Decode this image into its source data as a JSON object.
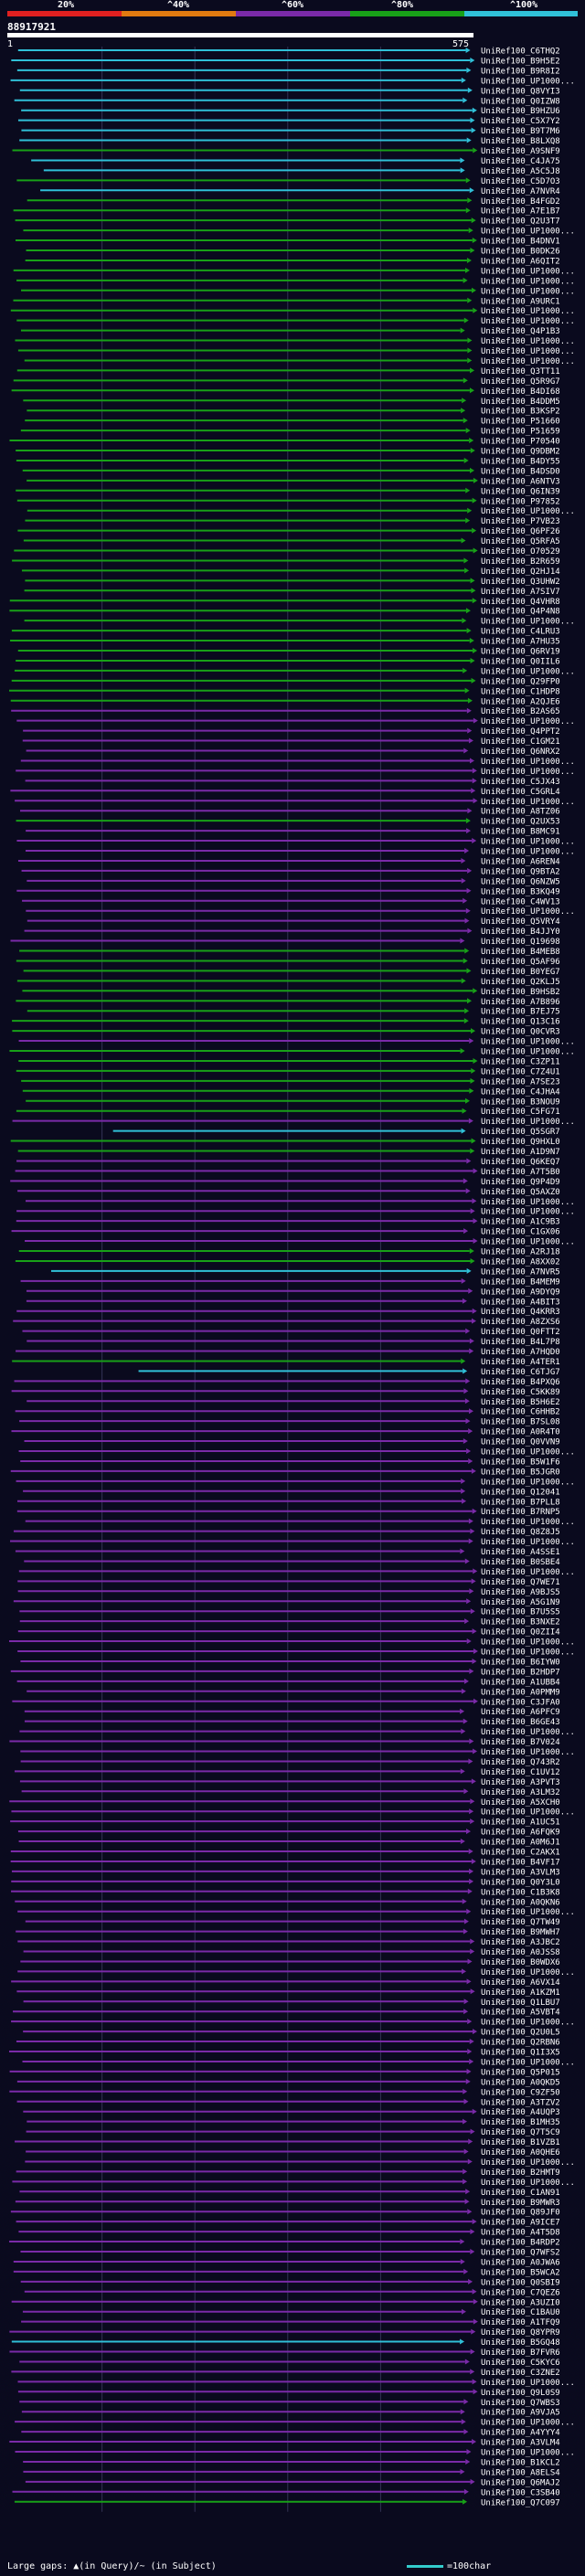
{
  "legend": {
    "labels": [
      "20%",
      "^40%",
      "^60%",
      "^80%",
      "^100%"
    ],
    "colors": [
      "#e02020",
      "#e07a10",
      "#7a2aa8",
      "#18a018",
      "#30c0d8"
    ]
  },
  "query": {
    "id": "88917921",
    "start": "1",
    "end": "575"
  },
  "hits": [
    {
      "name": "UniRef100_C6THQ2",
      "color": "#30c0d8"
    },
    {
      "name": "UniRef100_B9H5E2",
      "color": "#30c0d8"
    },
    {
      "name": "UniRef100_B9R8I2",
      "color": "#30c0d8"
    },
    {
      "name": "UniRef100_UP1000...",
      "color": "#30c0d8"
    },
    {
      "name": "UniRef100_Q8VYI3",
      "color": "#30c0d8"
    },
    {
      "name": "UniRef100_Q0IZW8",
      "color": "#30c0d8"
    },
    {
      "name": "UniRef100_B9HZU6",
      "color": "#30c0d8"
    },
    {
      "name": "UniRef100_C5X7Y2",
      "color": "#30c0d8"
    },
    {
      "name": "UniRef100_B9T7M6",
      "color": "#30c0d8"
    },
    {
      "name": "UniRef100_B8LXQ8",
      "color": "#30c0d8"
    },
    {
      "name": "UniRef100_A9SNF9",
      "color": "#18a018"
    },
    {
      "name": "UniRef100_C4JA75",
      "color": "#30c0d8"
    },
    {
      "name": "UniRef100_A5C5J8",
      "color": "#30c0d8"
    },
    {
      "name": "UniRef100_C5D7O3",
      "color": "#18a018"
    },
    {
      "name": "UniRef100_A7NVR4",
      "color": "#30c0d8"
    },
    {
      "name": "UniRef100_B4FGD2",
      "color": "#18a018"
    },
    {
      "name": "UniRef100_A7E1B7",
      "color": "#18a018"
    },
    {
      "name": "UniRef100_Q2U3T7",
      "color": "#18a018"
    },
    {
      "name": "UniRef100_UP1000...",
      "color": "#18a018"
    },
    {
      "name": "UniRef100_B4DNV1",
      "color": "#18a018"
    },
    {
      "name": "UniRef100_B0DK26",
      "color": "#18a018"
    },
    {
      "name": "UniRef100_A6QIT2",
      "color": "#18a018"
    },
    {
      "name": "UniRef100_UP1000...",
      "color": "#18a018"
    },
    {
      "name": "UniRef100_UP1000...",
      "color": "#18a018"
    },
    {
      "name": "UniRef100_UP1000...",
      "color": "#18a018"
    },
    {
      "name": "UniRef100_A9URC1",
      "color": "#18a018"
    },
    {
      "name": "UniRef100_UP1000...",
      "color": "#18a018"
    },
    {
      "name": "UniRef100_UP1000...",
      "color": "#18a018"
    },
    {
      "name": "UniRef100_Q4P1B3",
      "color": "#18a018"
    },
    {
      "name": "UniRef100_UP1000...",
      "color": "#18a018"
    },
    {
      "name": "UniRef100_UP1000...",
      "color": "#18a018"
    },
    {
      "name": "UniRef100_UP1000...",
      "color": "#18a018"
    },
    {
      "name": "UniRef100_Q3TT11",
      "color": "#18a018"
    },
    {
      "name": "UniRef100_Q5R9G7",
      "color": "#18a018"
    },
    {
      "name": "UniRef100_B4DI68",
      "color": "#18a018"
    },
    {
      "name": "UniRef100_B4DDM5",
      "color": "#18a018"
    },
    {
      "name": "UniRef100_B3KSP2",
      "color": "#18a018"
    },
    {
      "name": "UniRef100_P51660",
      "color": "#18a018"
    },
    {
      "name": "UniRef100_P51659",
      "color": "#18a018"
    },
    {
      "name": "UniRef100_P70540",
      "color": "#18a018"
    },
    {
      "name": "UniRef100_Q9DBM2",
      "color": "#18a018"
    },
    {
      "name": "UniRef100_B4DY55",
      "color": "#18a018"
    },
    {
      "name": "UniRef100_B4DSD0",
      "color": "#18a018"
    },
    {
      "name": "UniRef100_A6NTV3",
      "color": "#18a018"
    },
    {
      "name": "UniRef100_Q6IN39",
      "color": "#18a018"
    },
    {
      "name": "UniRef100_P97852",
      "color": "#18a018"
    },
    {
      "name": "UniRef100_UP1000...",
      "color": "#18a018"
    },
    {
      "name": "UniRef100_P7VB23",
      "color": "#18a018"
    },
    {
      "name": "UniRef100_Q6PF26",
      "color": "#18a018"
    },
    {
      "name": "UniRef100_Q5RFA5",
      "color": "#18a018"
    },
    {
      "name": "UniRef100_O70529",
      "color": "#18a018"
    },
    {
      "name": "UniRef100_B2R659",
      "color": "#18a018"
    },
    {
      "name": "UniRef100_Q2HJ14",
      "color": "#18a018"
    },
    {
      "name": "UniRef100_Q3UHW2",
      "color": "#18a018"
    },
    {
      "name": "UniRef100_A7SIV7",
      "color": "#18a018"
    },
    {
      "name": "UniRef100_Q4VHR8",
      "color": "#18a018"
    },
    {
      "name": "UniRef100_Q4P4N8",
      "color": "#18a018"
    },
    {
      "name": "UniRef100_UP1000...",
      "color": "#18a018"
    },
    {
      "name": "UniRef100_C4LRU3",
      "color": "#18a018"
    },
    {
      "name": "UniRef100_A7HU35",
      "color": "#18a018"
    },
    {
      "name": "UniRef100_Q6RV19",
      "color": "#18a018"
    },
    {
      "name": "UniRef100_Q0IIL6",
      "color": "#18a018"
    },
    {
      "name": "UniRef100_UP1000...",
      "color": "#18a018"
    },
    {
      "name": "UniRef100_Q29FP0",
      "color": "#18a018"
    },
    {
      "name": "UniRef100_C1HDP8",
      "color": "#18a018"
    },
    {
      "name": "UniRef100_A2QJE6",
      "color": "#18a018"
    },
    {
      "name": "UniRef100_B2AS65",
      "color": "#7a2aa8"
    },
    {
      "name": "UniRef100_UP1000...",
      "color": "#7a2aa8"
    },
    {
      "name": "UniRef100_Q4PPT2",
      "color": "#7a2aa8"
    },
    {
      "name": "UniRef100_C1GM21",
      "color": "#7a2aa8"
    },
    {
      "name": "UniRef100_Q6NRX2",
      "color": "#7a2aa8"
    },
    {
      "name": "UniRef100_UP1000...",
      "color": "#7a2aa8"
    },
    {
      "name": "UniRef100_UP1000...",
      "color": "#7a2aa8"
    },
    {
      "name": "UniRef100_C5JX43",
      "color": "#7a2aa8"
    },
    {
      "name": "UniRef100_C5GRL4",
      "color": "#7a2aa8"
    },
    {
      "name": "UniRef100_UP1000...",
      "color": "#7a2aa8"
    },
    {
      "name": "UniRef100_A8TZ06",
      "color": "#7a2aa8"
    },
    {
      "name": "UniRef100_Q2UX53",
      "color": "#18a018"
    },
    {
      "name": "UniRef100_B8MC91",
      "color": "#7a2aa8"
    },
    {
      "name": "UniRef100_UP1000...",
      "color": "#7a2aa8"
    },
    {
      "name": "UniRef100_UP1000...",
      "color": "#7a2aa8"
    },
    {
      "name": "UniRef100_A6REN4",
      "color": "#7a2aa8"
    },
    {
      "name": "UniRef100_Q9BTA2",
      "color": "#7a2aa8"
    },
    {
      "name": "UniRef100_Q6NZW5",
      "color": "#7a2aa8"
    },
    {
      "name": "UniRef100_B3KQ49",
      "color": "#7a2aa8"
    },
    {
      "name": "UniRef100_C4WV13",
      "color": "#7a2aa8"
    },
    {
      "name": "UniRef100_UP1000...",
      "color": "#7a2aa8"
    },
    {
      "name": "UniRef100_Q5VRY4",
      "color": "#7a2aa8"
    },
    {
      "name": "UniRef100_B4JJY0",
      "color": "#7a2aa8"
    },
    {
      "name": "UniRef100_Q19698",
      "color": "#7a2aa8"
    },
    {
      "name": "UniRef100_B4MEB8",
      "color": "#18a018"
    },
    {
      "name": "UniRef100_Q5AF96",
      "color": "#18a018"
    },
    {
      "name": "UniRef100_B0YEG7",
      "color": "#18a018"
    },
    {
      "name": "UniRef100_Q2KLJ5",
      "color": "#18a018"
    },
    {
      "name": "UniRef100_B9HSB2",
      "color": "#18a018"
    },
    {
      "name": "UniRef100_A7B896",
      "color": "#18a018"
    },
    {
      "name": "UniRef100_B7EJ75",
      "color": "#18a018"
    },
    {
      "name": "UniRef100_Q13C16",
      "color": "#18a018"
    },
    {
      "name": "UniRef100_Q0CVR3",
      "color": "#18a018"
    },
    {
      "name": "UniRef100_UP1000...",
      "color": "#7a2aa8"
    },
    {
      "name": "UniRef100_UP1000...",
      "color": "#18a018"
    },
    {
      "name": "UniRef100_C3ZP11",
      "color": "#18a018"
    },
    {
      "name": "UniRef100_C7Z4U1",
      "color": "#18a018"
    },
    {
      "name": "UniRef100_A7SE23",
      "color": "#18a018"
    },
    {
      "name": "UniRef100_C4JHA4",
      "color": "#18a018"
    },
    {
      "name": "UniRef100_B3NOU9",
      "color": "#18a018"
    },
    {
      "name": "UniRef100_C5FG71",
      "color": "#18a018"
    },
    {
      "name": "UniRef100_UP1000...",
      "color": "#7a2aa8"
    },
    {
      "name": "UniRef100_Q5SGR7",
      "color": "#30c0d8"
    },
    {
      "name": "UniRef100_Q9HXL0",
      "color": "#18a018"
    },
    {
      "name": "UniRef100_A1D9N7",
      "color": "#18a018"
    },
    {
      "name": "UniRef100_Q6KEQ7",
      "color": "#7a2aa8"
    },
    {
      "name": "UniRef100_A7T5B0",
      "color": "#7a2aa8"
    },
    {
      "name": "UniRef100_Q9P4D9",
      "color": "#7a2aa8"
    },
    {
      "name": "UniRef100_Q5AXZ0",
      "color": "#7a2aa8"
    },
    {
      "name": "UniRef100_UP1000...",
      "color": "#7a2aa8"
    },
    {
      "name": "UniRef100_UP1000...",
      "color": "#7a2aa8"
    },
    {
      "name": "UniRef100_A1C9B3",
      "color": "#7a2aa8"
    },
    {
      "name": "UniRef100_C1GX06",
      "color": "#7a2aa8"
    },
    {
      "name": "UniRef100_UP1000...",
      "color": "#7a2aa8"
    },
    {
      "name": "UniRef100_A2RJ18",
      "color": "#18a018"
    },
    {
      "name": "UniRef100_A8XX02",
      "color": "#18a018"
    },
    {
      "name": "UniRef100_A7NVR5",
      "color": "#30c0d8"
    },
    {
      "name": "UniRef100_B4MEM9",
      "color": "#7a2aa8"
    },
    {
      "name": "UniRef100_A9DYQ9",
      "color": "#7a2aa8"
    },
    {
      "name": "UniRef100_A4BIT3",
      "color": "#7a2aa8"
    },
    {
      "name": "UniRef100_Q4KRR3",
      "color": "#7a2aa8"
    },
    {
      "name": "UniRef100_A8ZXS6",
      "color": "#7a2aa8"
    },
    {
      "name": "UniRef100_Q0FTT2",
      "color": "#7a2aa8"
    },
    {
      "name": "UniRef100_B4L7P8",
      "color": "#7a2aa8"
    },
    {
      "name": "UniRef100_A7HQD0",
      "color": "#7a2aa8"
    },
    {
      "name": "UniRef100_A4TER1",
      "color": "#18a018"
    },
    {
      "name": "UniRef100_C6TJG7",
      "color": "#30c0d8"
    },
    {
      "name": "UniRef100_B4PXQ6",
      "color": "#7a2aa8"
    },
    {
      "name": "UniRef100_C5KK89",
      "color": "#7a2aa8"
    },
    {
      "name": "UniRef100_B5H6E2",
      "color": "#7a2aa8"
    },
    {
      "name": "UniRef100_C6HHB2",
      "color": "#7a2aa8"
    },
    {
      "name": "UniRef100_B7SL08",
      "color": "#7a2aa8"
    },
    {
      "name": "UniRef100_A0R4T0",
      "color": "#7a2aa8"
    },
    {
      "name": "UniRef100_Q0VVN9",
      "color": "#7a2aa8"
    },
    {
      "name": "UniRef100_UP1000...",
      "color": "#7a2aa8"
    },
    {
      "name": "UniRef100_B5W1F6",
      "color": "#7a2aa8"
    },
    {
      "name": "UniRef100_B5JGR0",
      "color": "#7a2aa8"
    },
    {
      "name": "UniRef100_UP1000...",
      "color": "#7a2aa8"
    },
    {
      "name": "UniRef100_Q12041",
      "color": "#7a2aa8"
    },
    {
      "name": "UniRef100_B7PLL8",
      "color": "#7a2aa8"
    },
    {
      "name": "UniRef100_B7RNP5",
      "color": "#7a2aa8"
    },
    {
      "name": "UniRef100_UP1000...",
      "color": "#7a2aa8"
    },
    {
      "name": "UniRef100_Q8Z8J5",
      "color": "#7a2aa8"
    },
    {
      "name": "UniRef100_UP1000...",
      "color": "#7a2aa8"
    },
    {
      "name": "UniRef100_A4SSE1",
      "color": "#7a2aa8"
    },
    {
      "name": "UniRef100_B0SBE4",
      "color": "#7a2aa8"
    },
    {
      "name": "UniRef100_UP1000...",
      "color": "#7a2aa8"
    },
    {
      "name": "UniRef100_Q7WE71",
      "color": "#7a2aa8"
    },
    {
      "name": "UniRef100_A9BJS5",
      "color": "#7a2aa8"
    },
    {
      "name": "UniRef100_A5G1N9",
      "color": "#7a2aa8"
    },
    {
      "name": "UniRef100_B7U5S5",
      "color": "#7a2aa8"
    },
    {
      "name": "UniRef100_B3NXE2",
      "color": "#7a2aa8"
    },
    {
      "name": "UniRef100_Q0ZII4",
      "color": "#7a2aa8"
    },
    {
      "name": "UniRef100_UP1000...",
      "color": "#7a2aa8"
    },
    {
      "name": "UniRef100_UP1000...",
      "color": "#7a2aa8"
    },
    {
      "name": "UniRef100_B6IYW0",
      "color": "#7a2aa8"
    },
    {
      "name": "UniRef100_B2HDP7",
      "color": "#7a2aa8"
    },
    {
      "name": "UniRef100_A1UBB4",
      "color": "#7a2aa8"
    },
    {
      "name": "UniRef100_A0PMM9",
      "color": "#7a2aa8"
    },
    {
      "name": "UniRef100_C3JFA0",
      "color": "#7a2aa8"
    },
    {
      "name": "UniRef100_A6PFC9",
      "color": "#7a2aa8"
    },
    {
      "name": "UniRef100_B6GE43",
      "color": "#7a2aa8"
    },
    {
      "name": "UniRef100_UP1000...",
      "color": "#7a2aa8"
    },
    {
      "name": "UniRef100_B7V024",
      "color": "#7a2aa8"
    },
    {
      "name": "UniRef100_UP1000...",
      "color": "#7a2aa8"
    },
    {
      "name": "UniRef100_Q743R2",
      "color": "#7a2aa8"
    },
    {
      "name": "UniRef100_C1UV12",
      "color": "#7a2aa8"
    },
    {
      "name": "UniRef100_A3PVT3",
      "color": "#7a2aa8"
    },
    {
      "name": "UniRef100_A3LM32",
      "color": "#7a2aa8"
    },
    {
      "name": "UniRef100_A5XCH0",
      "color": "#7a2aa8"
    },
    {
      "name": "UniRef100_UP1000...",
      "color": "#7a2aa8"
    },
    {
      "name": "UniRef100_A1UC51",
      "color": "#7a2aa8"
    },
    {
      "name": "UniRef100_A6FQK9",
      "color": "#7a2aa8"
    },
    {
      "name": "UniRef100_A0M6J1",
      "color": "#7a2aa8"
    },
    {
      "name": "UniRef100_C2AKX1",
      "color": "#7a2aa8"
    },
    {
      "name": "UniRef100_B4VF17",
      "color": "#7a2aa8"
    },
    {
      "name": "UniRef100_A3VLM3",
      "color": "#7a2aa8"
    },
    {
      "name": "UniRef100_Q0Y3L0",
      "color": "#7a2aa8"
    },
    {
      "name": "UniRef100_C1B3K8",
      "color": "#7a2aa8"
    },
    {
      "name": "UniRef100_A0QKN6",
      "color": "#7a2aa8"
    },
    {
      "name": "UniRef100_UP1000...",
      "color": "#7a2aa8"
    },
    {
      "name": "UniRef100_Q7TW49",
      "color": "#7a2aa8"
    },
    {
      "name": "UniRef100_B9MWH7",
      "color": "#7a2aa8"
    },
    {
      "name": "UniRef100_A3JBC2",
      "color": "#7a2aa8"
    },
    {
      "name": "UniRef100_A0JSS8",
      "color": "#7a2aa8"
    },
    {
      "name": "UniRef100_B0WDX6",
      "color": "#7a2aa8"
    },
    {
      "name": "UniRef100_UP1000...",
      "color": "#7a2aa8"
    },
    {
      "name": "UniRef100_A6VX14",
      "color": "#7a2aa8"
    },
    {
      "name": "UniRef100_A1KZM1",
      "color": "#7a2aa8"
    },
    {
      "name": "UniRef100_Q1LBU7",
      "color": "#7a2aa8"
    },
    {
      "name": "UniRef100_A5VBT4",
      "color": "#7a2aa8"
    },
    {
      "name": "UniRef100_UP1000...",
      "color": "#7a2aa8"
    },
    {
      "name": "UniRef100_Q2U0L5",
      "color": "#7a2aa8"
    },
    {
      "name": "UniRef100_Q2RBN6",
      "color": "#7a2aa8"
    },
    {
      "name": "UniRef100_Q1I3X5",
      "color": "#7a2aa8"
    },
    {
      "name": "UniRef100_UP1000...",
      "color": "#7a2aa8"
    },
    {
      "name": "UniRef100_Q5P015",
      "color": "#7a2aa8"
    },
    {
      "name": "UniRef100_A0QKD5",
      "color": "#7a2aa8"
    },
    {
      "name": "UniRef100_C9ZF50",
      "color": "#7a2aa8"
    },
    {
      "name": "UniRef100_A3TZV2",
      "color": "#7a2aa8"
    },
    {
      "name": "UniRef100_A4UQP3",
      "color": "#7a2aa8"
    },
    {
      "name": "UniRef100_B1MH35",
      "color": "#7a2aa8"
    },
    {
      "name": "UniRef100_Q7T5C9",
      "color": "#7a2aa8"
    },
    {
      "name": "UniRef100_B1VZB1",
      "color": "#7a2aa8"
    },
    {
      "name": "UniRef100_A0QHE6",
      "color": "#7a2aa8"
    },
    {
      "name": "UniRef100_UP1000...",
      "color": "#7a2aa8"
    },
    {
      "name": "UniRef100_B2HMT9",
      "color": "#7a2aa8"
    },
    {
      "name": "UniRef100_UP1000...",
      "color": "#7a2aa8"
    },
    {
      "name": "UniRef100_C1AN91",
      "color": "#7a2aa8"
    },
    {
      "name": "UniRef100_B9MWR3",
      "color": "#7a2aa8"
    },
    {
      "name": "UniRef100_Q89JF0",
      "color": "#7a2aa8"
    },
    {
      "name": "UniRef100_A9ICE7",
      "color": "#7a2aa8"
    },
    {
      "name": "UniRef100_A4T5D8",
      "color": "#7a2aa8"
    },
    {
      "name": "UniRef100_B4RDP2",
      "color": "#7a2aa8"
    },
    {
      "name": "UniRef100_Q7WFS2",
      "color": "#7a2aa8"
    },
    {
      "name": "UniRef100_A0JWA6",
      "color": "#7a2aa8"
    },
    {
      "name": "UniRef100_B5WCA2",
      "color": "#7a2aa8"
    },
    {
      "name": "UniRef100_Q0SBI9",
      "color": "#7a2aa8"
    },
    {
      "name": "UniRef100_C7QEZ6",
      "color": "#7a2aa8"
    },
    {
      "name": "UniRef100_A3UZI0",
      "color": "#7a2aa8"
    },
    {
      "name": "UniRef100_C1BAU0",
      "color": "#7a2aa8"
    },
    {
      "name": "UniRef100_A1TFQ9",
      "color": "#7a2aa8"
    },
    {
      "name": "UniRef100_Q8YPR9",
      "color": "#7a2aa8"
    },
    {
      "name": "UniRef100_B5GQ48",
      "color": "#30c0d8"
    },
    {
      "name": "UniRef100_B7FVR6",
      "color": "#7a2aa8"
    },
    {
      "name": "UniRef100_C5KYC6",
      "color": "#7a2aa8"
    },
    {
      "name": "UniRef100_C3ZNE2",
      "color": "#7a2aa8"
    },
    {
      "name": "UniRef100_UP1000...",
      "color": "#7a2aa8"
    },
    {
      "name": "UniRef100_Q9L0S9",
      "color": "#7a2aa8"
    },
    {
      "name": "UniRef100_Q7WBS3",
      "color": "#7a2aa8"
    },
    {
      "name": "UniRef100_A9VJA5",
      "color": "#7a2aa8"
    },
    {
      "name": "UniRef100_UP1000...",
      "color": "#7a2aa8"
    },
    {
      "name": "UniRef100_A4YYY4",
      "color": "#7a2aa8"
    },
    {
      "name": "UniRef100_A3VLM4",
      "color": "#7a2aa8"
    },
    {
      "name": "UniRef100_UP1000...",
      "color": "#7a2aa8"
    },
    {
      "name": "UniRef100_B1KCL2",
      "color": "#7a2aa8"
    },
    {
      "name": "UniRef100_A8ELS4",
      "color": "#7a2aa8"
    },
    {
      "name": "UniRef100_Q6MAJ2",
      "color": "#7a2aa8"
    },
    {
      "name": "UniRef100_C3SB40",
      "color": "#7a2aa8"
    },
    {
      "name": "UniRef100_Q7C097",
      "color": "#18a018"
    }
  ],
  "footer": {
    "gaps_text": "Large gaps: ▲(in Query)/~ (in Subject)",
    "scale_text": "=100char"
  }
}
